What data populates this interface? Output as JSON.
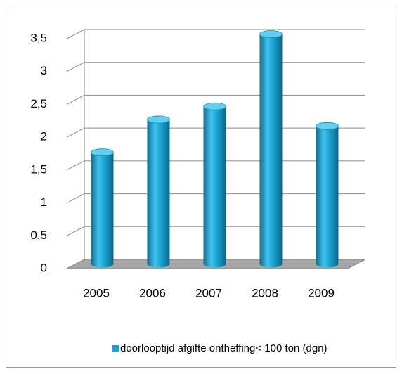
{
  "chart_data": {
    "type": "bar",
    "categories": [
      "2005",
      "2006",
      "2007",
      "2008",
      "2009"
    ],
    "series": [
      {
        "name": "doorlooptijd afgifte ontheffing< 100 ton (dgn)",
        "color": "#1aa3d0",
        "values": [
          1.7,
          2.2,
          2.4,
          3.5,
          2.1
        ]
      }
    ],
    "ylim": [
      0,
      3.5
    ],
    "yticks": [
      0,
      {
        "value": 0.5,
        "label": "0,5"
      },
      1,
      {
        "value": 1.5,
        "label": "1,5"
      },
      2,
      {
        "value": 2.5,
        "label": "2,5"
      },
      3,
      {
        "value": 3.5,
        "label": "3,5"
      }
    ],
    "grid": true,
    "legend": "bottom"
  }
}
